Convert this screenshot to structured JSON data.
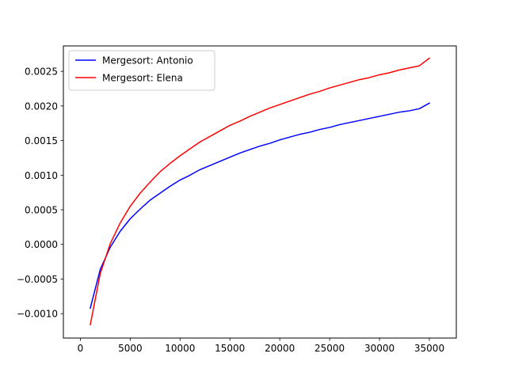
{
  "chart_data": {
    "type": "line",
    "title": "",
    "xlabel": "",
    "ylabel": "",
    "xlim": [
      -1700,
      37700
    ],
    "ylim": [
      -0.0013524,
      0.0028669
    ],
    "x_ticks": [
      {
        "value": 0,
        "label": "0"
      },
      {
        "value": 5000,
        "label": "5000"
      },
      {
        "value": 10000,
        "label": "10000"
      },
      {
        "value": 15000,
        "label": "15000"
      },
      {
        "value": 20000,
        "label": "20000"
      },
      {
        "value": 25000,
        "label": "25000"
      },
      {
        "value": 30000,
        "label": "30000"
      },
      {
        "value": 35000,
        "label": "35000"
      }
    ],
    "y_ticks": [
      {
        "value": -0.001,
        "label": "−0.0010"
      },
      {
        "value": -0.0005,
        "label": "−0.0005"
      },
      {
        "value": 0.0,
        "label": "0.0000"
      },
      {
        "value": 0.0005,
        "label": "0.0005"
      },
      {
        "value": 0.001,
        "label": "0.0010"
      },
      {
        "value": 0.0015,
        "label": "0.0015"
      },
      {
        "value": 0.002,
        "label": "0.0020"
      },
      {
        "value": 0.0025,
        "label": "0.0025"
      }
    ],
    "grid": false,
    "legend_position": "upper-left",
    "series": [
      {
        "name": "Mergesort: Antonio",
        "color": "#0000ff",
        "x": [
          1000,
          2000,
          3000,
          4000,
          5000,
          6000,
          7000,
          8000,
          9000,
          10000,
          11000,
          12000,
          13000,
          14000,
          15000,
          16000,
          17000,
          18000,
          19000,
          20000,
          21000,
          22000,
          23000,
          24000,
          25000,
          26000,
          27000,
          28000,
          29000,
          30000,
          31000,
          32000,
          33000,
          34000,
          35000
        ],
        "y": [
          -0.00092,
          -0.00036,
          -4e-05,
          0.00019,
          0.00037,
          0.00051,
          0.00064,
          0.00074,
          0.00084,
          0.00093,
          0.001,
          0.00108,
          0.00114,
          0.0012,
          0.00126,
          0.00132,
          0.00137,
          0.00142,
          0.00146,
          0.00151,
          0.00155,
          0.00159,
          0.00162,
          0.00166,
          0.00169,
          0.00173,
          0.00176,
          0.00179,
          0.00182,
          0.00185,
          0.00188,
          0.00191,
          0.00193,
          0.00196,
          0.00204
        ]
      },
      {
        "name": "Mergesort: Elena",
        "color": "#ff0000",
        "x": [
          1000,
          2000,
          3000,
          4000,
          5000,
          6000,
          7000,
          8000,
          9000,
          10000,
          11000,
          12000,
          13000,
          14000,
          15000,
          16000,
          17000,
          18000,
          19000,
          20000,
          21000,
          22000,
          23000,
          24000,
          25000,
          26000,
          27000,
          28000,
          29000,
          30000,
          31000,
          32000,
          33000,
          34000,
          35000
        ],
        "y": [
          -0.00116,
          -0.00042,
          1e-05,
          0.00031,
          0.00055,
          0.00074,
          0.0009,
          0.00105,
          0.00117,
          0.00128,
          0.00138,
          0.00148,
          0.00156,
          0.00164,
          0.00172,
          0.00178,
          0.00185,
          0.00191,
          0.00197,
          0.00202,
          0.00207,
          0.00212,
          0.00217,
          0.00221,
          0.00226,
          0.0023,
          0.00234,
          0.00238,
          0.00241,
          0.00245,
          0.00248,
          0.00252,
          0.00255,
          0.00258,
          0.00269
        ]
      }
    ]
  }
}
